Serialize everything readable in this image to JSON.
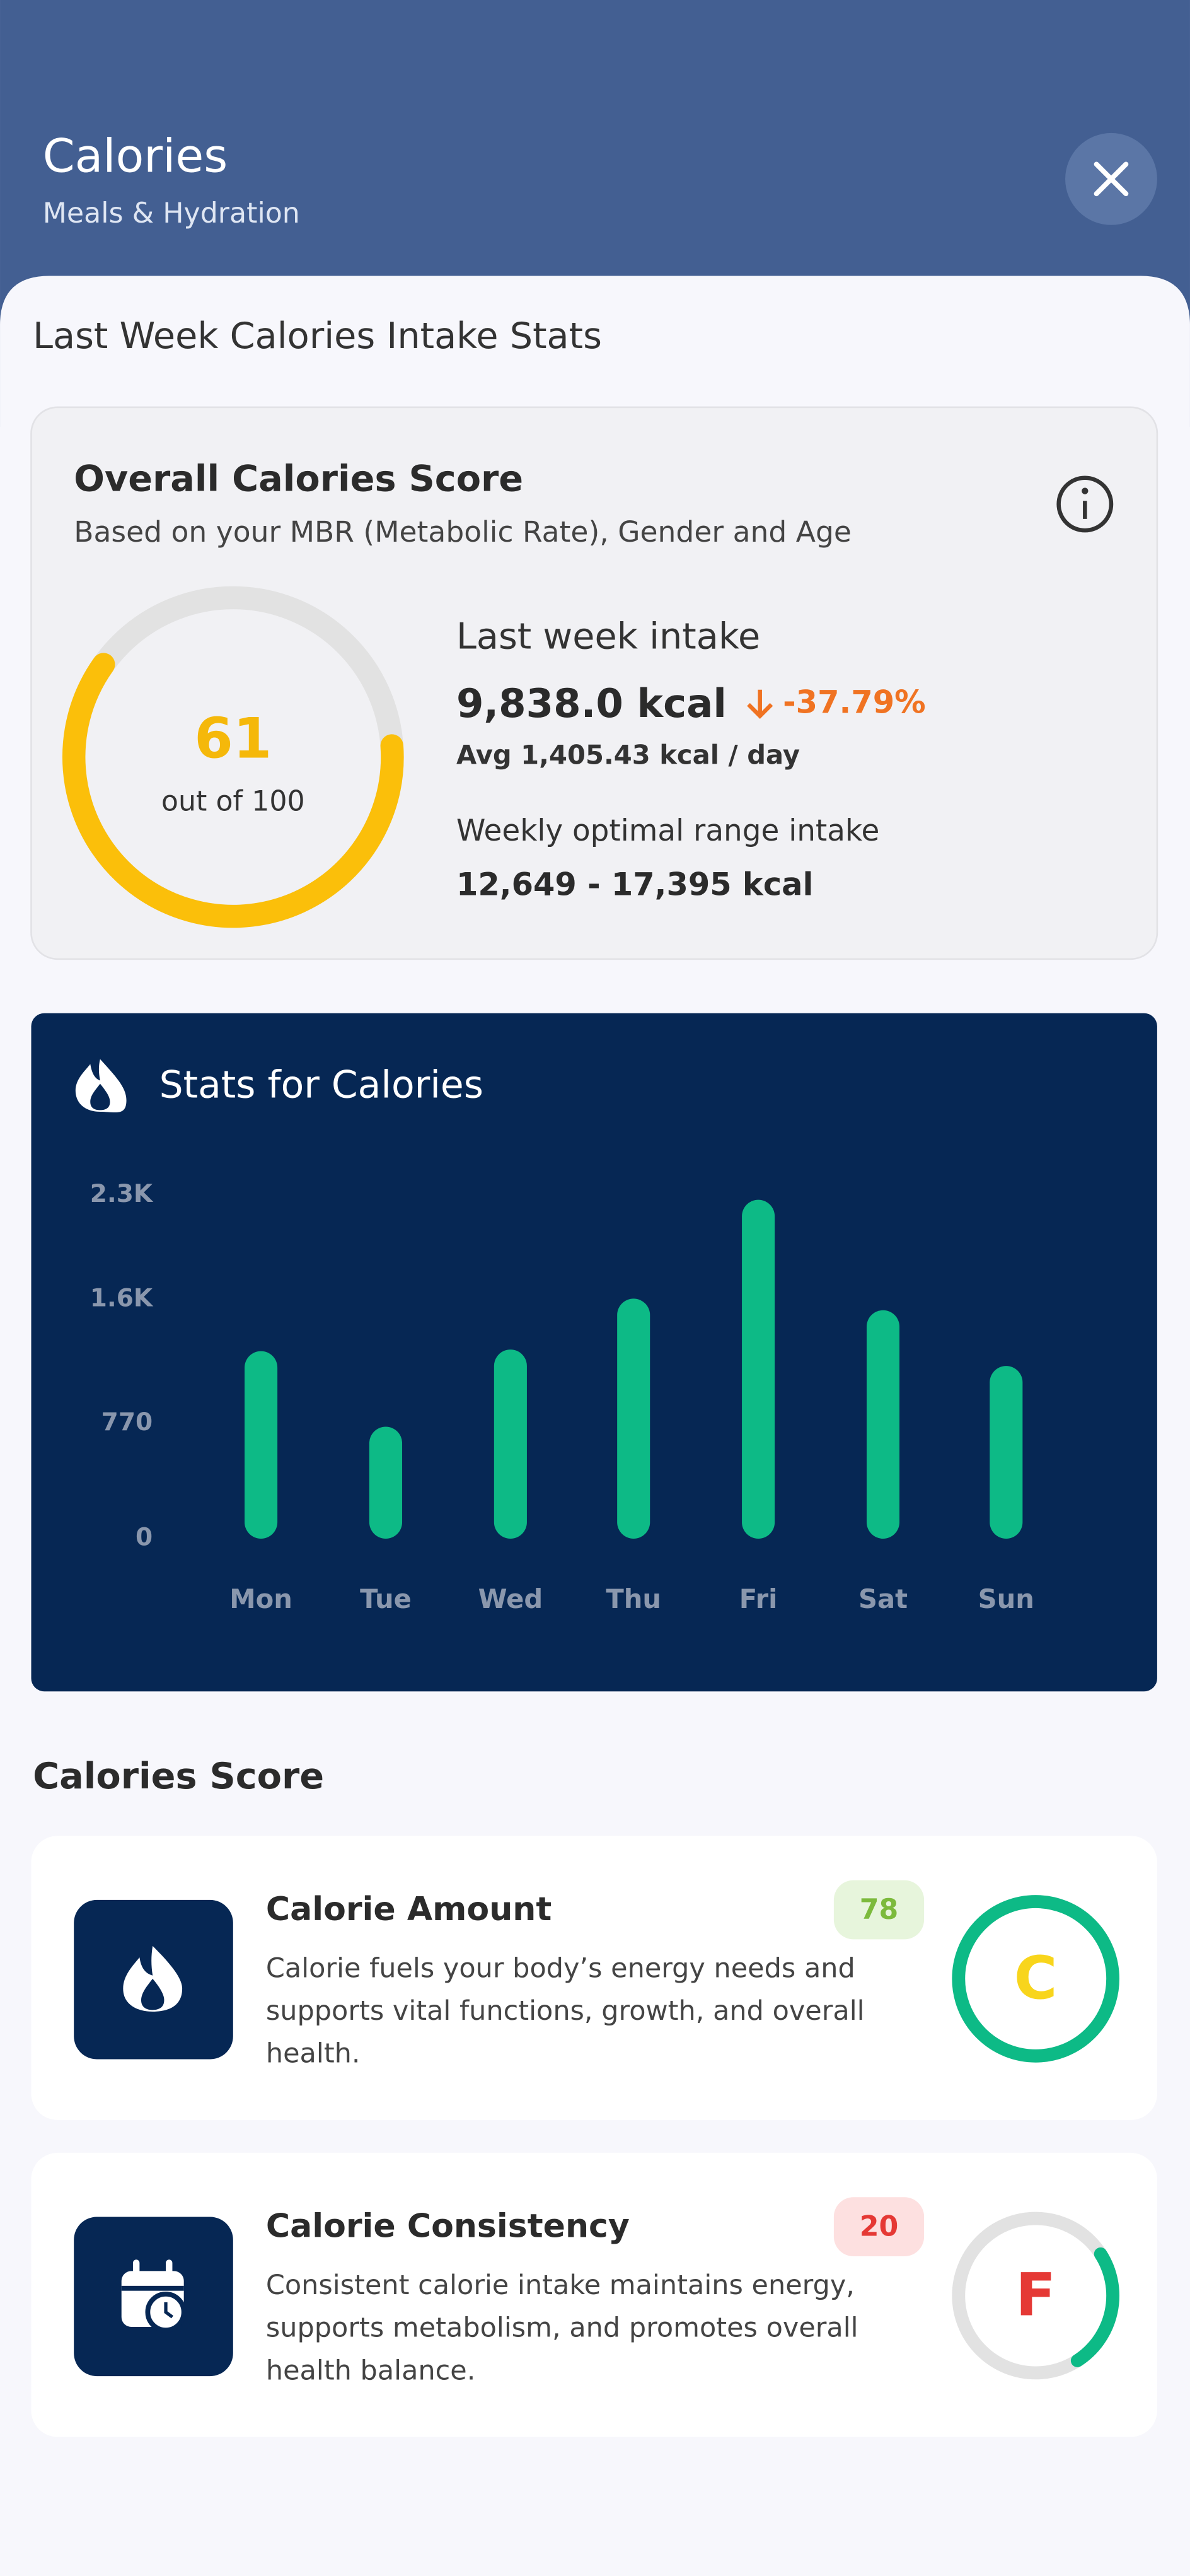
{
  "header": {
    "title": "Calories",
    "subtitle": "Meals & Hydration"
  },
  "section_title": "Last Week Calories Intake Stats",
  "overall": {
    "title": "Overall Calories Score",
    "subtitle": "Based on your MBR (Metabolic Rate), Gender and Age",
    "score": 61,
    "score_caption": "out of",
    "score_max": 100,
    "intake_label": "Last week intake",
    "intake": "9,838.0 kcal",
    "change": "-37.79%",
    "avg": "Avg 1,405.43 kcal / day",
    "range_label": "Weekly optimal range intake",
    "range": "12,649 - 17,395 kcal"
  },
  "chart_data": {
    "type": "bar",
    "title": "Stats for Calories",
    "categories": [
      "Mon",
      "Tue",
      "Wed",
      "Thu",
      "Fri",
      "Sat",
      "Sun"
    ],
    "values": [
      1256,
      750,
      1267,
      1608,
      2270,
      1530,
      1157
    ],
    "color": "#0dba86",
    "ylim": [
      0,
      2400
    ],
    "yticks": [
      0,
      770,
      {
        "value": 1600,
        "label": "1.6K"
      },
      {
        "value": 2300,
        "label": "2.3K"
      }
    ]
  },
  "scores_title": "Calories Score",
  "scores": [
    {
      "title": "Calorie Amount",
      "score": 78,
      "grade": "C",
      "description": "Calorie fuels your body’s energy needs and supports vital functions, growth, and overall health."
    },
    {
      "title": "Calorie Consistency",
      "score": 20,
      "grade": "F",
      "description": "Consistent calorie intake maintains energy, supports metabolism, and promotes overall health balance."
    }
  ]
}
